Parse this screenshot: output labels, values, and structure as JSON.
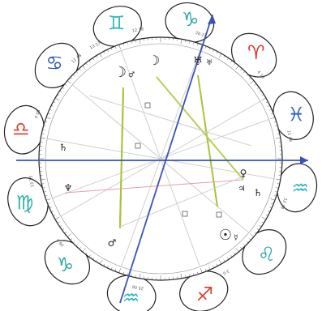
{
  "colors": {
    "aries": "#d8352a",
    "taurus": "#3aa6a0",
    "gemini": "#2fb8c0",
    "cancer": "#2c55b0",
    "leo": "#2aa4a8",
    "virgo": "#2fb0a8",
    "libra": "#d84a3a",
    "scorpio": "#2aa4a0",
    "sagittarius": "#d6453a",
    "capricorn": "#2fa4a2",
    "aquarius": "#2fb4c0",
    "pisces": "#2f62b8",
    "axis": "#3a52b8",
    "trine": "#a9c23c",
    "sextile": "#b7cf55",
    "square": "#e3a0a8",
    "minor": "#cfcfcf"
  },
  "signs": [
    {
      "name": "Capricorn",
      "glyph": "♑",
      "color_key": "capricorn",
      "icon": "capricorn-icon"
    },
    {
      "name": "Aries",
      "glyph": "♈",
      "color_key": "aries",
      "icon": "aries-icon"
    },
    {
      "name": "Pisces",
      "glyph": "♓",
      "color_key": "pisces",
      "icon": "pisces-icon"
    },
    {
      "name": "Aquarius",
      "glyph": "♒",
      "color_key": "aquarius",
      "icon": "aquarius-icon"
    },
    {
      "name": "Leo",
      "glyph": "♌",
      "color_key": "leo",
      "icon": "leo-icon"
    },
    {
      "name": "Sagittarius",
      "glyph": "♐",
      "color_key": "sagittarius",
      "icon": "sagittarius-icon"
    },
    {
      "name": "Aquarius",
      "glyph": "♒",
      "color_key": "aquarius",
      "icon": "aquarius-icon"
    },
    {
      "name": "Capricorn",
      "glyph": "♑",
      "color_key": "capricorn",
      "icon": "capricorn-icon"
    },
    {
      "name": "Virgo",
      "glyph": "♍",
      "color_key": "virgo",
      "icon": "virgo-icon"
    },
    {
      "name": "Libra",
      "glyph": "♎",
      "color_key": "libra",
      "icon": "libra-icon"
    },
    {
      "name": "Cancer",
      "glyph": "♋",
      "color_key": "cancer",
      "icon": "cancer-icon"
    },
    {
      "name": "Gemini",
      "glyph": "♊",
      "color_key": "gemini",
      "icon": "gemini-icon"
    }
  ],
  "cusp_labels": [
    "26 27",
    "13 13",
    "4 18",
    "11 48",
    "12 18",
    "3 0",
    "25 06",
    "26 6",
    "13 13",
    "4 08",
    "11 48",
    "12 18"
  ],
  "planets": [
    {
      "glyph": "☽",
      "small": "♂",
      "name": "Moon",
      "icon": "moon-icon"
    },
    {
      "glyph": "☽",
      "small": "",
      "name": "Moon",
      "icon": "moon-icon"
    },
    {
      "glyph": "♅",
      "small": "♅",
      "name": "Uranus",
      "icon": "uranus-icon"
    },
    {
      "glyph": "♄",
      "small": "",
      "name": "Saturn",
      "icon": "saturn-icon"
    },
    {
      "glyph": "♆",
      "small": "",
      "name": "Neptune",
      "icon": "neptune-icon"
    },
    {
      "glyph": "♀",
      "small": "",
      "name": "Venus",
      "icon": "venus-icon"
    },
    {
      "glyph": "♃",
      "small": "",
      "name": "Jupiter",
      "icon": "jupiter-icon"
    },
    {
      "glyph": "♄",
      "small": "",
      "name": "Saturn",
      "icon": "saturn-icon"
    },
    {
      "glyph": "☉",
      "small": "☿",
      "name": "Sun",
      "icon": "sun-icon"
    },
    {
      "glyph": "♂",
      "small": "",
      "name": "Mars",
      "icon": "mars-icon"
    }
  ]
}
